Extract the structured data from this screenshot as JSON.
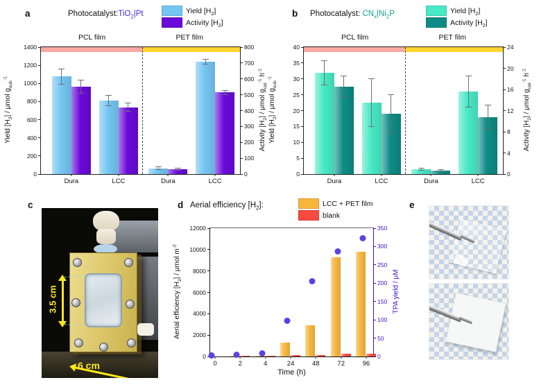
{
  "panel_a": {
    "label": "a",
    "header": {
      "prefix": "Photocatalyst:",
      "catalyst": "TiO_{2}|Pt",
      "catalyst_color": "#4526e0"
    },
    "legend": [
      {
        "label": "Yield [H_{2}]",
        "color": "#74c6f2"
      },
      {
        "label": "Activity [H_{2}]",
        "color": "#6a0ad9"
      }
    ],
    "chart_data": {
      "type": "bar",
      "sections": [
        {
          "label": "PCL film",
          "band_color": "#f9a8a4"
        },
        {
          "label": "PET film",
          "band_color": "#ffd42e"
        }
      ],
      "categories": [
        "Dura",
        "LCC",
        "Dura",
        "LCC"
      ],
      "category_sections": [
        0,
        0,
        1,
        1
      ],
      "y_left": {
        "label": "Yield [H_{2}] / μmol g_{sub}^{-1}",
        "min": 0,
        "max": 1400,
        "tick_step": 200
      },
      "y_right": {
        "label": "Activity [H_{2}] / μmol g_{cat}^{-1} h^{-1}",
        "min": 0,
        "max": 800,
        "tick_step": 100
      },
      "series": [
        {
          "name": "Yield [H_{2}]",
          "axis": "left",
          "color": "#74c6f2",
          "values": [
            1075,
            810,
            65,
            1240
          ],
          "errors": [
            85,
            60,
            15,
            25
          ]
        },
        {
          "name": "Activity [H_{2}]",
          "axis": "right",
          "color": "#6a0ad9",
          "values": [
            551,
            420,
            29,
            515
          ],
          "errors": [
            43,
            26,
            7,
            14
          ]
        }
      ]
    }
  },
  "panel_b": {
    "label": "b",
    "header": {
      "prefix": "Photocatalyst: ",
      "catalyst": "CN_{x}|Ni_{2}P",
      "catalyst_color": "#12a099"
    },
    "legend": [
      {
        "label": "Yield [H_{2}]",
        "color": "#48e9c6"
      },
      {
        "label": "Activity [H_{2}]",
        "color": "#0d8c86"
      }
    ],
    "chart_data": {
      "type": "bar",
      "sections": [
        {
          "label": "PCL film",
          "band_color": "#f9a8a4"
        },
        {
          "label": "PET film",
          "band_color": "#ffd42e"
        }
      ],
      "categories": [
        "Dura",
        "LCC",
        "Dura",
        "LCC"
      ],
      "category_sections": [
        0,
        0,
        1,
        1
      ],
      "y_left": {
        "label": "Yield [H_{2}] / μmol g_{sub}^{-1}",
        "min": 0,
        "max": 40,
        "tick_step": 5
      },
      "y_right": {
        "label": "Activity [H_{2}] / μmol g_{cat}^{-1} h^{-1}",
        "min": 0,
        "max": 24,
        "tick_step": 4
      },
      "series": [
        {
          "name": "Yield [H_{2}]",
          "axis": "left",
          "color": "#48e9c6",
          "values": [
            32,
            22.5,
            1.5,
            26
          ],
          "errors": [
            3.8,
            7.5,
            0.4,
            5
          ]
        },
        {
          "name": "Activity [H_{2}]",
          "axis": "right",
          "color": "#0d8c86",
          "values": [
            16.5,
            11.4,
            0.7,
            10.8
          ],
          "errors": [
            2,
            3.6,
            0.2,
            2.2
          ]
        }
      ]
    }
  },
  "panel_c": {
    "label": "c",
    "height_label": "3.5 cm",
    "width_label": "6 cm"
  },
  "panel_d": {
    "label": "d",
    "header": "Aerial efficiency [H_{2}]:",
    "legend": [
      {
        "label": "LCC + PET film",
        "color": "#f8b63f"
      },
      {
        "label": "blank",
        "color": "#f94a40"
      }
    ],
    "chart_data": {
      "type": "bar+scatter",
      "x_label": "Time (h)",
      "categories": [
        "0",
        "2",
        "4",
        "24",
        "48",
        "72",
        "96"
      ],
      "y_left": {
        "label": "Aerial efficiency [H_{2}] / μmol m^{-2}",
        "min": 0,
        "max": 12000,
        "tick_step": 2000,
        "color": "#111111"
      },
      "y_right": {
        "label": "TPA yield / μM",
        "min": 0,
        "max": 350,
        "tick_step": 50,
        "color": "#3a10c8"
      },
      "series": [
        {
          "name": "LCC + PET film",
          "type": "bar",
          "axis": "left",
          "color": "#f8b63f",
          "values": [
            0,
            20,
            60,
            1300,
            2950,
            9250,
            9800
          ]
        },
        {
          "name": "blank",
          "type": "bar",
          "axis": "left",
          "color": "#f94a40",
          "values": [
            0,
            20,
            90,
            110,
            140,
            230,
            280
          ]
        },
        {
          "name": "TPA yield",
          "type": "scatter",
          "axis": "right",
          "color": "#5b42e4",
          "values": [
            2,
            4,
            9,
            97,
            205,
            287,
            322
          ]
        }
      ]
    }
  },
  "panel_e": {
    "label": "e"
  }
}
